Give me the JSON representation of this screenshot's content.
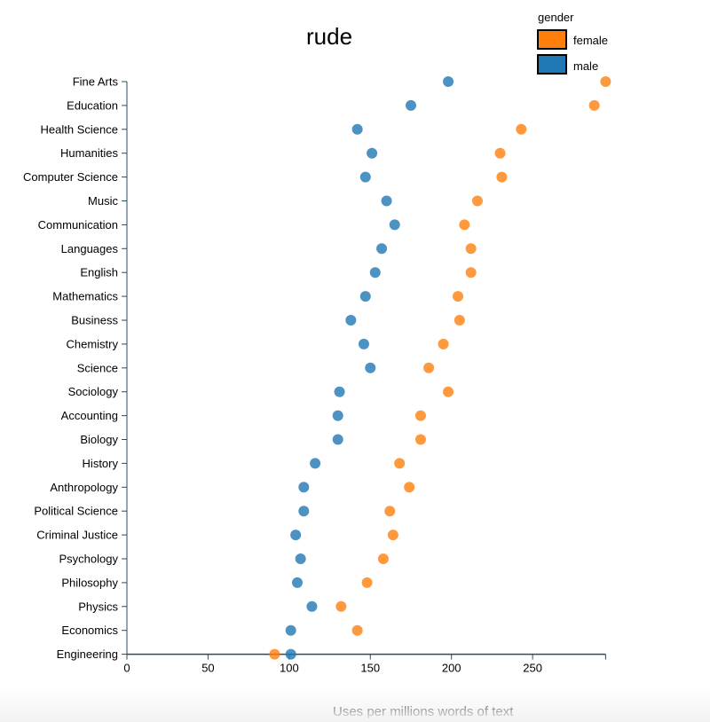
{
  "chart_data": {
    "type": "scatter",
    "title": "rude",
    "xlabel": "Uses per millions words of text",
    "ylabel": "",
    "xlim": [
      0,
      295
    ],
    "xticks": [
      0,
      50,
      100,
      150,
      200,
      250
    ],
    "legend": {
      "title": "gender",
      "placement": "top-right"
    },
    "categories": [
      "Fine Arts",
      "Education",
      "Health Science",
      "Humanities",
      "Computer Science",
      "Music",
      "Communication",
      "Languages",
      "English",
      "Mathematics",
      "Business",
      "Chemistry",
      "Science",
      "Sociology",
      "Accounting",
      "Biology",
      "History",
      "Anthropology",
      "Political Science",
      "Criminal Justice",
      "Psychology",
      "Philosophy",
      "Physics",
      "Economics",
      "Engineering"
    ],
    "series": [
      {
        "name": "female",
        "color": "#ff7f0e",
        "values": [
          295,
          288,
          243,
          230,
          231,
          216,
          208,
          212,
          212,
          204,
          205,
          195,
          186,
          198,
          181,
          181,
          168,
          174,
          162,
          164,
          158,
          148,
          132,
          142,
          91
        ]
      },
      {
        "name": "male",
        "color": "#1f77b4",
        "values": [
          198,
          175,
          142,
          151,
          147,
          160,
          165,
          157,
          153,
          147,
          138,
          146,
          150,
          131,
          130,
          130,
          116,
          109,
          109,
          104,
          107,
          105,
          114,
          101,
          101
        ]
      }
    ]
  }
}
